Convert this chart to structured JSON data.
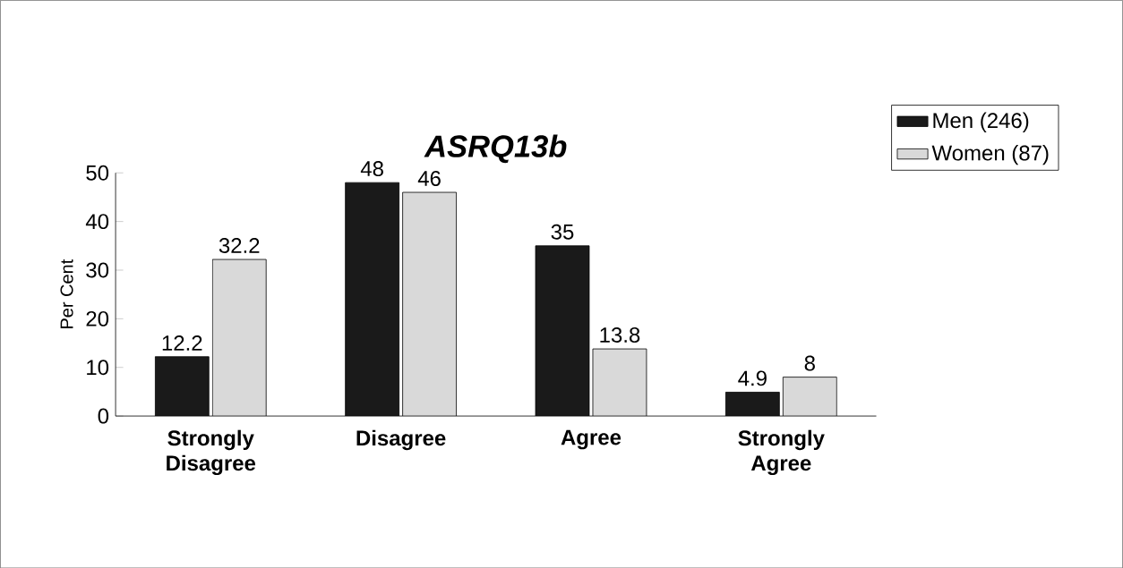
{
  "chart_data": {
    "type": "bar",
    "title": "ASRQ13b",
    "ylabel": "Per Cent",
    "categories": [
      "Strongly Disagree",
      "Disagree",
      "Agree",
      "Strongly Agree"
    ],
    "series": [
      {
        "name": "Men (246)",
        "color": "#1a1a1a",
        "values": [
          12.2,
          48,
          35,
          4.9
        ]
      },
      {
        "name": "Women (87)",
        "color": "#d9d9d9",
        "values": [
          32.2,
          46,
          13.8,
          8
        ]
      }
    ],
    "ylim": [
      0,
      50
    ],
    "yticks": [
      0,
      10,
      20,
      30,
      40,
      50
    ],
    "data_labels": true,
    "legend": "top right",
    "grid": false
  }
}
